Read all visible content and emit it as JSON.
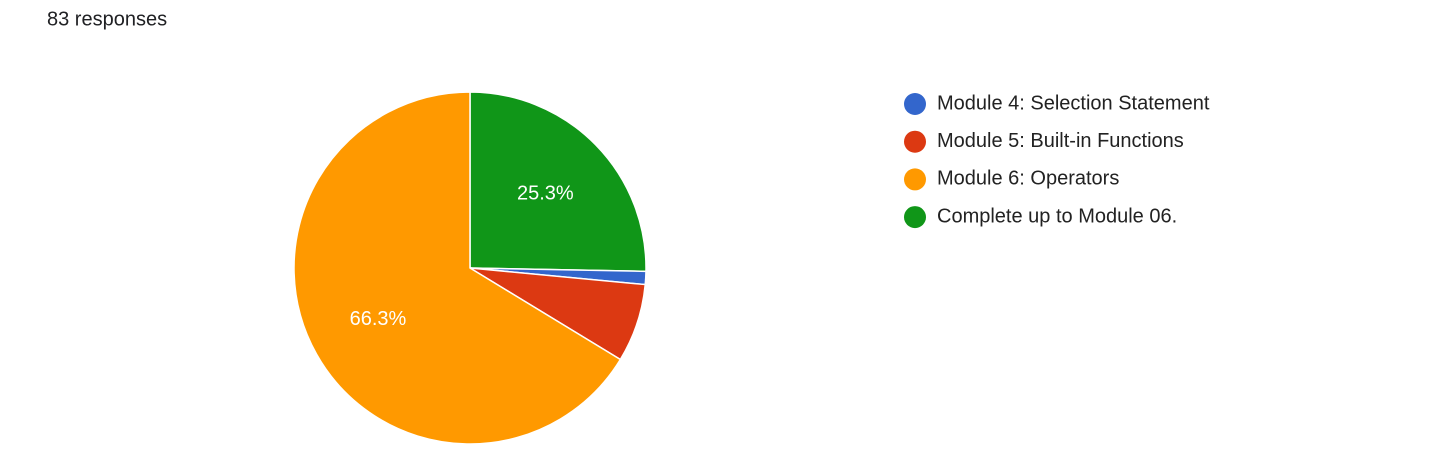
{
  "chart_data": {
    "type": "pie",
    "subtitle": "83 responses",
    "categories": [
      "Module 4: Selection Statement",
      "Module 5: Built-in Functions",
      "Module 6: Operators",
      "Complete up to Module 06."
    ],
    "values": [
      1.2,
      7.2,
      66.3,
      25.3
    ],
    "value_labels": [
      null,
      null,
      "66.3%",
      "25.3%"
    ],
    "colors": [
      "#3366cc",
      "#dc3912",
      "#ff9900",
      "#109618"
    ],
    "legend": "right"
  }
}
